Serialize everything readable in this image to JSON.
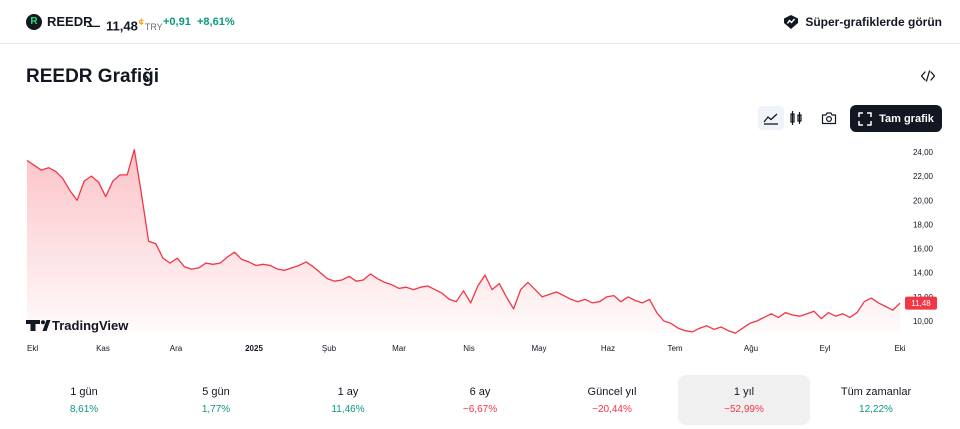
{
  "header": {
    "logo_letter": "R",
    "ticker": "REEDR",
    "dash": "—",
    "price": "11,48",
    "currency_marker": "¢",
    "currency": "TRY",
    "change": "+0,91",
    "change_pct": "+8,61%",
    "super_link": "Süper-grafiklerde görün"
  },
  "title": "REEDR Grafiği",
  "title_chevron": "›",
  "toolbar": {
    "fullscreen_label": "Tam grafik",
    "icons": [
      "area-chart-icon",
      "candles-icon",
      "camera-icon",
      "expand-icon"
    ]
  },
  "colors": {
    "line": "#f23645",
    "positive": "#089981",
    "negative": "#f23645",
    "accent_currency": "#ff9800"
  },
  "watermark": "TradingView",
  "chart_data": {
    "type": "area",
    "x_tick_labels": [
      "Ekl",
      "Kas",
      "Ara",
      "2025",
      "Şub",
      "Mar",
      "Nis",
      "May",
      "Haz",
      "Tem",
      "Ağu",
      "Eyl",
      "Eki"
    ],
    "y_tick_labels": [
      "24,00",
      "22,00",
      "20,00",
      "18,00",
      "16,00",
      "14,00",
      "12,00",
      "10,00"
    ],
    "ylim": [
      9.0,
      24.7
    ],
    "last_value_label": "11,48",
    "values": [
      23.3,
      22.9,
      22.5,
      22.7,
      22.4,
      21.8,
      20.8,
      20.0,
      21.6,
      22.0,
      21.5,
      20.3,
      21.6,
      22.1,
      22.1,
      24.2,
      20.5,
      16.6,
      16.4,
      15.2,
      14.8,
      15.2,
      14.5,
      14.3,
      14.4,
      14.8,
      14.7,
      14.8,
      15.3,
      15.7,
      15.1,
      14.9,
      14.6,
      14.7,
      14.6,
      14.3,
      14.2,
      14.4,
      14.6,
      14.9,
      14.5,
      14.0,
      13.5,
      13.3,
      13.4,
      13.7,
      13.3,
      13.4,
      13.9,
      13.5,
      13.2,
      13.0,
      12.7,
      12.8,
      12.6,
      12.8,
      12.9,
      12.6,
      12.3,
      11.8,
      11.6,
      12.5,
      11.5,
      12.9,
      13.8,
      12.6,
      13.1,
      12.0,
      11.0,
      12.6,
      13.2,
      12.6,
      12.0,
      12.2,
      12.4,
      12.1,
      11.8,
      11.6,
      11.8,
      11.5,
      11.6,
      12.0,
      12.1,
      11.6,
      12.0,
      11.7,
      11.5,
      11.8,
      10.7,
      10.0,
      9.8,
      9.4,
      9.2,
      9.1,
      9.4,
      9.6,
      9.3,
      9.5,
      9.2,
      9.0,
      9.4,
      9.8,
      10.0,
      10.3,
      10.6,
      10.3,
      10.7,
      10.5,
      10.4,
      10.6,
      10.8,
      10.2,
      10.7,
      10.4,
      10.6,
      10.3,
      10.7,
      11.6,
      11.9,
      11.5,
      11.2,
      10.9,
      11.48
    ]
  },
  "periods": [
    {
      "label": "1 gün",
      "value": "8,61%",
      "tone": "pos",
      "active": false
    },
    {
      "label": "5 gün",
      "value": "1,77%",
      "tone": "pos",
      "active": false
    },
    {
      "label": "1 ay",
      "value": "11,46%",
      "tone": "pos",
      "active": false
    },
    {
      "label": "6 ay",
      "value": "−6,67%",
      "tone": "neg",
      "active": false
    },
    {
      "label": "Güncel yıl",
      "value": "−20,44%",
      "tone": "neg",
      "active": false
    },
    {
      "label": "1 yıl",
      "value": "−52,99%",
      "tone": "neg",
      "active": true
    },
    {
      "label": "Tüm zamanlar",
      "value": "12,22%",
      "tone": "pos",
      "active": false
    }
  ]
}
